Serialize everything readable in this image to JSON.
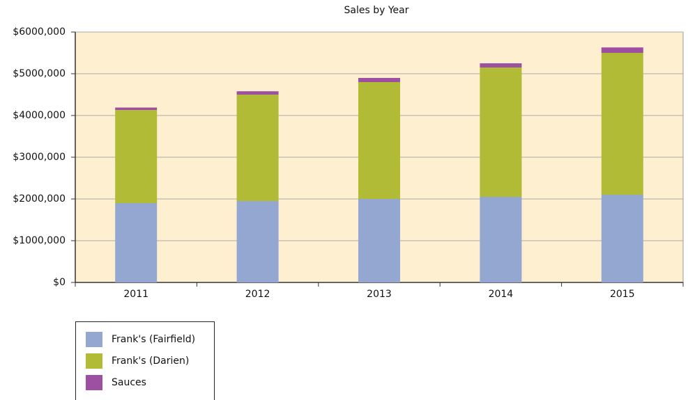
{
  "chart_data": {
    "type": "stacked_bar",
    "title": "Sales by Year",
    "categories": [
      "2011",
      "2012",
      "2013",
      "2014",
      "2015"
    ],
    "series": [
      {
        "name": "Frank's (Fairfield)",
        "color": "#93a7d1",
        "values": [
          1900000,
          1950000,
          2000000,
          2050000,
          2100000
        ]
      },
      {
        "name": "Frank's (Darien)",
        "color": "#b2bb36",
        "values": [
          2230000,
          2550000,
          2800000,
          3100000,
          3400000
        ]
      },
      {
        "name": "Sauces",
        "color": "#9d4fa2",
        "values": [
          60000,
          80000,
          100000,
          100000,
          130000
        ]
      }
    ],
    "ylim": [
      0,
      6000000
    ],
    "yticks": [
      {
        "value": 0,
        "label": "$0"
      },
      {
        "value": 1000000,
        "label": "$1000,000"
      },
      {
        "value": 2000000,
        "label": "$2000,000"
      },
      {
        "value": 3000000,
        "label": "$3000,000"
      },
      {
        "value": 4000000,
        "label": "$4000,000"
      },
      {
        "value": 5000000,
        "label": "$5000,000"
      },
      {
        "value": 6000000,
        "label": "$6000,000"
      }
    ],
    "grid": true,
    "legend": "bottom-left"
  }
}
